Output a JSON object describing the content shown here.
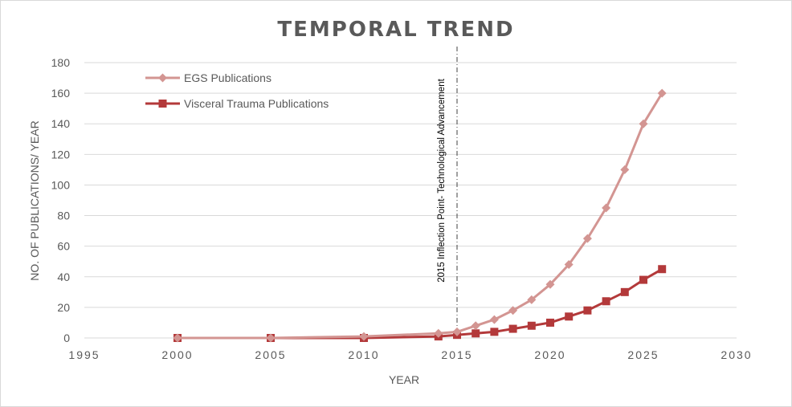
{
  "chart_data": {
    "type": "line",
    "title": "TEMPORAL TREND",
    "xlabel": "YEAR",
    "ylabel": "NO. OF PUBLICATIONS/ YEAR",
    "xlim": [
      1995,
      2030
    ],
    "ylim": [
      0,
      180
    ],
    "x_ticks": [
      "1995",
      "2000",
      "2005",
      "2010",
      "2015",
      "2020",
      "2025",
      "2030"
    ],
    "y_ticks": [
      "0",
      "20",
      "40",
      "60",
      "80",
      "100",
      "120",
      "140",
      "160",
      "180"
    ],
    "grid": true,
    "legend_position": "top-left",
    "series": [
      {
        "name": "EGS Publications",
        "color": "#d39592",
        "marker": "diamond",
        "x": [
          2000,
          2005,
          2010,
          2014,
          2015,
          2016,
          2017,
          2018,
          2019,
          2020,
          2021,
          2022,
          2023,
          2024,
          2025,
          2026
        ],
        "y": [
          0,
          0,
          1,
          3,
          4,
          8,
          12,
          18,
          25,
          35,
          48,
          65,
          85,
          110,
          140,
          160
        ]
      },
      {
        "name": "Visceral Trauma Publications",
        "color": "#b3393a",
        "marker": "square",
        "x": [
          2000,
          2005,
          2010,
          2014,
          2015,
          2016,
          2017,
          2018,
          2019,
          2020,
          2021,
          2022,
          2023,
          2024,
          2025,
          2026
        ],
        "y": [
          0,
          0,
          0,
          1,
          2,
          3,
          4,
          6,
          8,
          10,
          14,
          18,
          24,
          30,
          38,
          45
        ]
      }
    ],
    "annotations": [
      {
        "text": "2015 Inflection Point- Technological Advancement",
        "x": 2015,
        "style": "dash-dot vertical line"
      }
    ]
  }
}
